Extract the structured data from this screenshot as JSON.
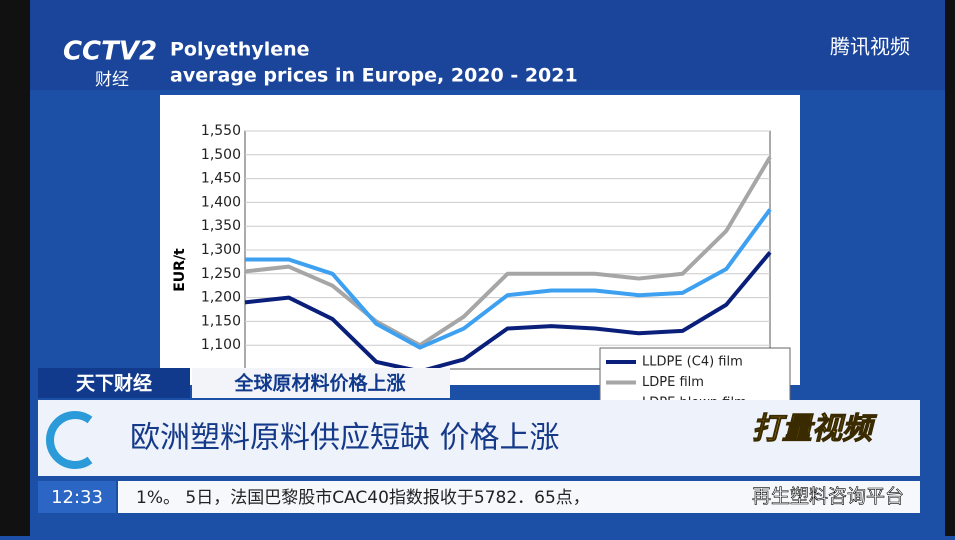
{
  "chart_data": {
    "type": "line",
    "title": "Polyethylene",
    "subtitle": "average prices in Europe, 2020 - 2021",
    "y_label": "EUR/t",
    "categories": [
      null,
      null,
      null,
      null,
      null,
      null,
      null,
      null,
      null,
      null,
      null,
      null,
      null
    ],
    "series": [
      {
        "name": "LLDPE (C4) film",
        "color": "#0a1f7a",
        "values": [
          1190,
          1200,
          1155,
          1065,
          1045,
          1070,
          1135,
          1140,
          1135,
          1125,
          1130,
          1185,
          1295
        ]
      },
      {
        "name": "LDPE film",
        "color": "#a6a6a6",
        "values": [
          1255,
          1265,
          1225,
          1150,
          1100,
          1160,
          1250,
          1250,
          1250,
          1240,
          1250,
          1340,
          1495
        ]
      },
      {
        "name": "LDPE blown film",
        "color": "#3ea0f0",
        "values": [
          1280,
          1280,
          1250,
          1145,
          1095,
          1135,
          1205,
          1215,
          1215,
          1205,
          1210,
          1260,
          1385
        ]
      }
    ],
    "ylim": [
      1050,
      1550
    ],
    "yticks": [
      {
        "value": 1100,
        "label": "1,100"
      },
      {
        "value": 1150,
        "label": "1,150"
      },
      {
        "value": 1200,
        "label": "1,200"
      },
      {
        "value": 1250,
        "label": "1,250"
      },
      {
        "value": 1300,
        "label": "1,300"
      },
      {
        "value": 1350,
        "label": "1,350"
      },
      {
        "value": 1400,
        "label": "1,400"
      },
      {
        "value": 1450,
        "label": "1,450"
      },
      {
        "value": 1500,
        "label": "1,500"
      },
      {
        "value": 1550,
        "label": "1,550"
      }
    ],
    "legend": "lower right"
  },
  "overlay": {
    "channel": "CCTV2",
    "channel_sub": "财经",
    "platform": "腾讯视频",
    "program": "打量视频",
    "section": "天下财经",
    "topic": "全球原材料价格上涨",
    "headline": "欧洲塑料原料供应短缺 价格上涨",
    "clock": "12:33",
    "ticker": "1%。 5日，法国巴黎股市CAC40指数报收于5782．65点，",
    "watermark": "再生塑料咨询平台"
  }
}
